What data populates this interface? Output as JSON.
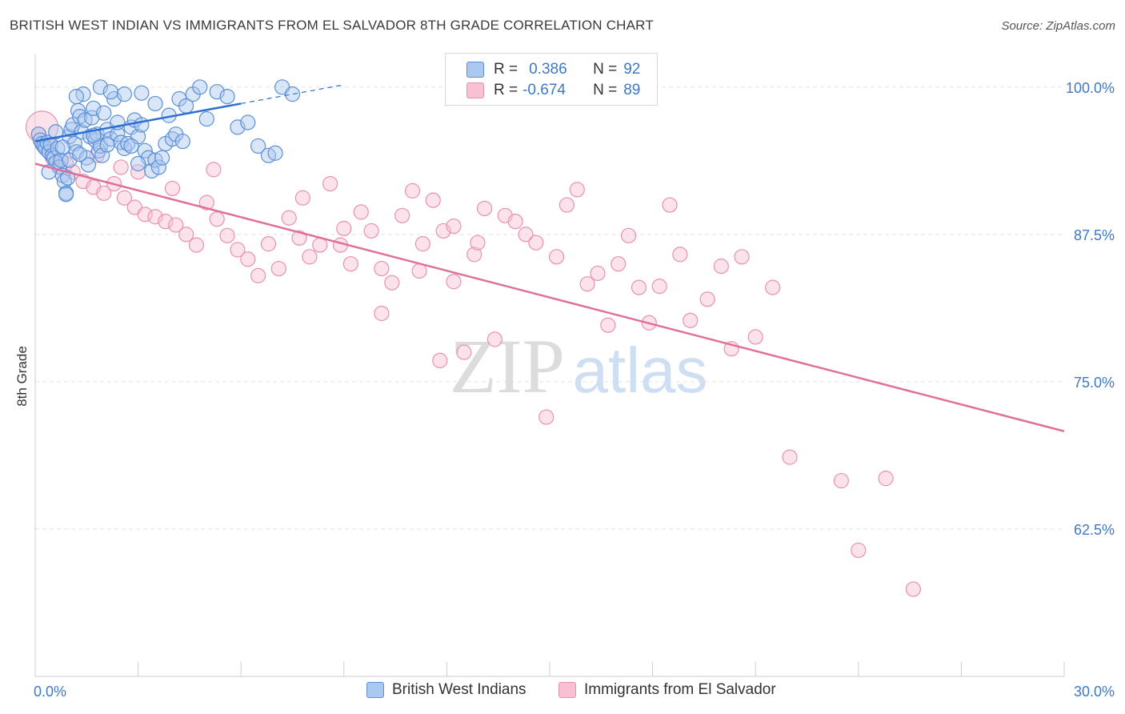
{
  "title": "BRITISH WEST INDIAN VS IMMIGRANTS FROM EL SALVADOR 8TH GRADE CORRELATION CHART",
  "source": "Source: ZipAtlas.com",
  "watermark": {
    "zip": "ZIP",
    "atlas": "atlas"
  },
  "legend_stats": [
    {
      "r_label": "R =",
      "r_value": "0.386",
      "n_label": "N =",
      "n_value": "92"
    },
    {
      "r_label": "R =",
      "r_value": "-0.674",
      "n_label": "N =",
      "n_value": "89"
    }
  ],
  "colors": {
    "blue_fill": "#aac8f0",
    "blue_stroke": "#5b8fd9",
    "blue_line": "#2b6fd0",
    "pink_fill": "#f8c0d2",
    "pink_stroke": "#e891ae",
    "pink_line": "#e0709a",
    "tick_label": "#3d78c9",
    "grid": "#e3e3e3"
  },
  "chart_data": {
    "type": "scatter",
    "title": "BRITISH WEST INDIAN VS IMMIGRANTS FROM EL SALVADOR 8TH GRADE CORRELATION CHART",
    "xlabel": "",
    "ylabel": "8th Grade",
    "xlim": [
      0,
      30
    ],
    "ylim": [
      50,
      102.5
    ],
    "x_tick_labels": [
      "0.0%",
      "30.0%"
    ],
    "x_tick_values": [
      0,
      30
    ],
    "x_minor_ticks": [
      3,
      6,
      9,
      12,
      15,
      18,
      21,
      24,
      27,
      30
    ],
    "y_ticks": [
      100,
      87.5,
      75,
      62.5
    ],
    "y_tick_labels": [
      "100.0%",
      "87.5%",
      "75.0%",
      "62.5%"
    ],
    "grid": true,
    "legend_position": "top-center",
    "series": [
      {
        "name": "British West Indians",
        "color": "#aac8f0",
        "trend": {
          "x0": 0,
          "y0": 95.4,
          "x1": 6,
          "y1": 98.6,
          "dash_x1": 9,
          "dash_y1": 100.2
        },
        "points": [
          [
            0.1,
            96.0
          ],
          [
            0.15,
            95.5
          ],
          [
            0.2,
            95.2
          ],
          [
            0.25,
            95.0
          ],
          [
            0.3,
            94.8
          ],
          [
            0.35,
            95.3
          ],
          [
            0.4,
            94.5
          ],
          [
            0.45,
            95.1
          ],
          [
            0.5,
            94.2
          ],
          [
            0.55,
            94.0
          ],
          [
            0.6,
            93.6
          ],
          [
            0.65,
            94.8
          ],
          [
            0.7,
            93.2
          ],
          [
            0.75,
            93.8
          ],
          [
            0.8,
            92.5
          ],
          [
            0.85,
            92.0
          ],
          [
            0.9,
            91.0
          ],
          [
            0.95,
            92.3
          ],
          [
            1.0,
            95.8
          ],
          [
            1.05,
            96.4
          ],
          [
            1.1,
            96.8
          ],
          [
            1.15,
            95.2
          ],
          [
            1.2,
            94.5
          ],
          [
            1.25,
            98.0
          ],
          [
            1.3,
            97.5
          ],
          [
            1.35,
            96.2
          ],
          [
            1.4,
            99.4
          ],
          [
            1.45,
            97.2
          ],
          [
            1.5,
            94.0
          ],
          [
            1.55,
            93.4
          ],
          [
            1.6,
            95.8
          ],
          [
            1.65,
            97.4
          ],
          [
            1.7,
            98.2
          ],
          [
            1.75,
            95.5
          ],
          [
            1.8,
            96.0
          ],
          [
            1.85,
            94.6
          ],
          [
            1.9,
            95.0
          ],
          [
            1.95,
            94.2
          ],
          [
            2.0,
            97.8
          ],
          [
            2.1,
            96.4
          ],
          [
            2.2,
            95.6
          ],
          [
            2.3,
            99.0
          ],
          [
            2.4,
            96.0
          ],
          [
            2.5,
            95.3
          ],
          [
            2.6,
            94.8
          ],
          [
            2.7,
            95.2
          ],
          [
            2.8,
            96.6
          ],
          [
            2.9,
            97.2
          ],
          [
            3.0,
            95.8
          ],
          [
            3.1,
            96.8
          ],
          [
            3.2,
            94.6
          ],
          [
            3.3,
            94.0
          ],
          [
            3.4,
            92.9
          ],
          [
            3.5,
            93.8
          ],
          [
            3.6,
            93.2
          ],
          [
            3.7,
            94.0
          ],
          [
            3.8,
            95.2
          ],
          [
            3.9,
            97.6
          ],
          [
            4.0,
            95.6
          ],
          [
            4.2,
            99.0
          ],
          [
            4.4,
            98.4
          ],
          [
            4.6,
            99.4
          ],
          [
            4.8,
            100.0
          ],
          [
            5.0,
            97.3
          ],
          [
            5.3,
            99.6
          ],
          [
            5.6,
            99.2
          ],
          [
            5.9,
            96.6
          ],
          [
            6.2,
            97.0
          ],
          [
            6.5,
            95.0
          ],
          [
            6.8,
            94.2
          ],
          [
            7.0,
            94.4
          ],
          [
            7.2,
            100.0
          ],
          [
            7.5,
            99.4
          ],
          [
            1.2,
            99.2
          ],
          [
            1.9,
            100.0
          ],
          [
            2.2,
            99.6
          ],
          [
            2.6,
            99.4
          ],
          [
            3.1,
            99.5
          ],
          [
            3.5,
            98.6
          ],
          [
            4.1,
            96.0
          ],
          [
            4.3,
            95.4
          ],
          [
            0.6,
            96.2
          ],
          [
            0.8,
            94.9
          ],
          [
            1.0,
            93.8
          ],
          [
            1.3,
            94.3
          ],
          [
            1.7,
            95.9
          ],
          [
            2.1,
            95.1
          ],
          [
            2.4,
            97.0
          ],
          [
            2.8,
            95.0
          ],
          [
            3.0,
            93.5
          ],
          [
            0.4,
            92.8
          ],
          [
            0.9,
            90.9
          ]
        ]
      },
      {
        "name": "Immigrants from El Salvador",
        "color": "#f8c0d2",
        "trend": {
          "x0": 0,
          "y0": 93.5,
          "x1": 30,
          "y1": 70.8
        },
        "points": [
          [
            0.1,
            96.0
          ],
          [
            0.3,
            95.0
          ],
          [
            0.5,
            94.0
          ],
          [
            0.7,
            93.3
          ],
          [
            0.9,
            93.5
          ],
          [
            1.1,
            92.8
          ],
          [
            1.4,
            92.0
          ],
          [
            1.7,
            91.5
          ],
          [
            2.0,
            91.0
          ],
          [
            2.3,
            91.8
          ],
          [
            2.6,
            90.6
          ],
          [
            2.9,
            89.8
          ],
          [
            3.2,
            89.2
          ],
          [
            3.5,
            89.0
          ],
          [
            3.8,
            88.6
          ],
          [
            4.1,
            88.3
          ],
          [
            4.4,
            87.5
          ],
          [
            4.7,
            86.6
          ],
          [
            5.0,
            90.2
          ],
          [
            5.3,
            88.8
          ],
          [
            5.6,
            87.4
          ],
          [
            5.9,
            86.2
          ],
          [
            6.2,
            85.4
          ],
          [
            6.5,
            84.0
          ],
          [
            6.8,
            86.7
          ],
          [
            7.1,
            84.6
          ],
          [
            7.4,
            88.9
          ],
          [
            7.7,
            87.2
          ],
          [
            8.0,
            85.6
          ],
          [
            8.3,
            86.6
          ],
          [
            8.6,
            91.8
          ],
          [
            8.9,
            86.6
          ],
          [
            9.2,
            85.0
          ],
          [
            9.5,
            89.4
          ],
          [
            9.8,
            87.8
          ],
          [
            10.1,
            84.6
          ],
          [
            10.4,
            83.4
          ],
          [
            10.7,
            89.1
          ],
          [
            11.0,
            91.2
          ],
          [
            11.3,
            86.7
          ],
          [
            11.6,
            90.4
          ],
          [
            11.9,
            87.8
          ],
          [
            12.2,
            83.5
          ],
          [
            12.5,
            77.5
          ],
          [
            12.8,
            85.8
          ],
          [
            13.1,
            89.7
          ],
          [
            13.4,
            78.6
          ],
          [
            13.7,
            89.1
          ],
          [
            14.0,
            88.6
          ],
          [
            14.3,
            87.5
          ],
          [
            14.6,
            86.8
          ],
          [
            14.9,
            72.0
          ],
          [
            15.2,
            85.6
          ],
          [
            15.5,
            90.0
          ],
          [
            15.8,
            91.3
          ],
          [
            16.1,
            83.3
          ],
          [
            16.4,
            84.2
          ],
          [
            16.7,
            79.8
          ],
          [
            17.0,
            85.0
          ],
          [
            17.3,
            87.4
          ],
          [
            17.6,
            83.0
          ],
          [
            17.9,
            80.0
          ],
          [
            18.2,
            83.1
          ],
          [
            18.5,
            90.0
          ],
          [
            18.8,
            85.8
          ],
          [
            19.1,
            80.2
          ],
          [
            19.6,
            82.0
          ],
          [
            20.0,
            84.8
          ],
          [
            20.3,
            77.8
          ],
          [
            20.6,
            85.6
          ],
          [
            21.0,
            78.8
          ],
          [
            21.5,
            83.0
          ],
          [
            22.0,
            68.6
          ],
          [
            23.5,
            66.6
          ],
          [
            24.0,
            60.7
          ],
          [
            24.8,
            66.8
          ],
          [
            25.6,
            57.4
          ],
          [
            11.8,
            76.8
          ],
          [
            12.2,
            88.2
          ],
          [
            12.9,
            86.8
          ],
          [
            3.0,
            92.8
          ],
          [
            4.0,
            91.4
          ],
          [
            5.2,
            93.0
          ],
          [
            2.5,
            93.2
          ],
          [
            1.8,
            94.2
          ],
          [
            7.8,
            90.6
          ],
          [
            9.0,
            88.0
          ],
          [
            10.1,
            80.8
          ],
          [
            11.2,
            84.4
          ]
        ]
      }
    ]
  },
  "bottom_legend": [
    {
      "label": "British West Indians"
    },
    {
      "label": "Immigrants from El Salvador"
    }
  ]
}
